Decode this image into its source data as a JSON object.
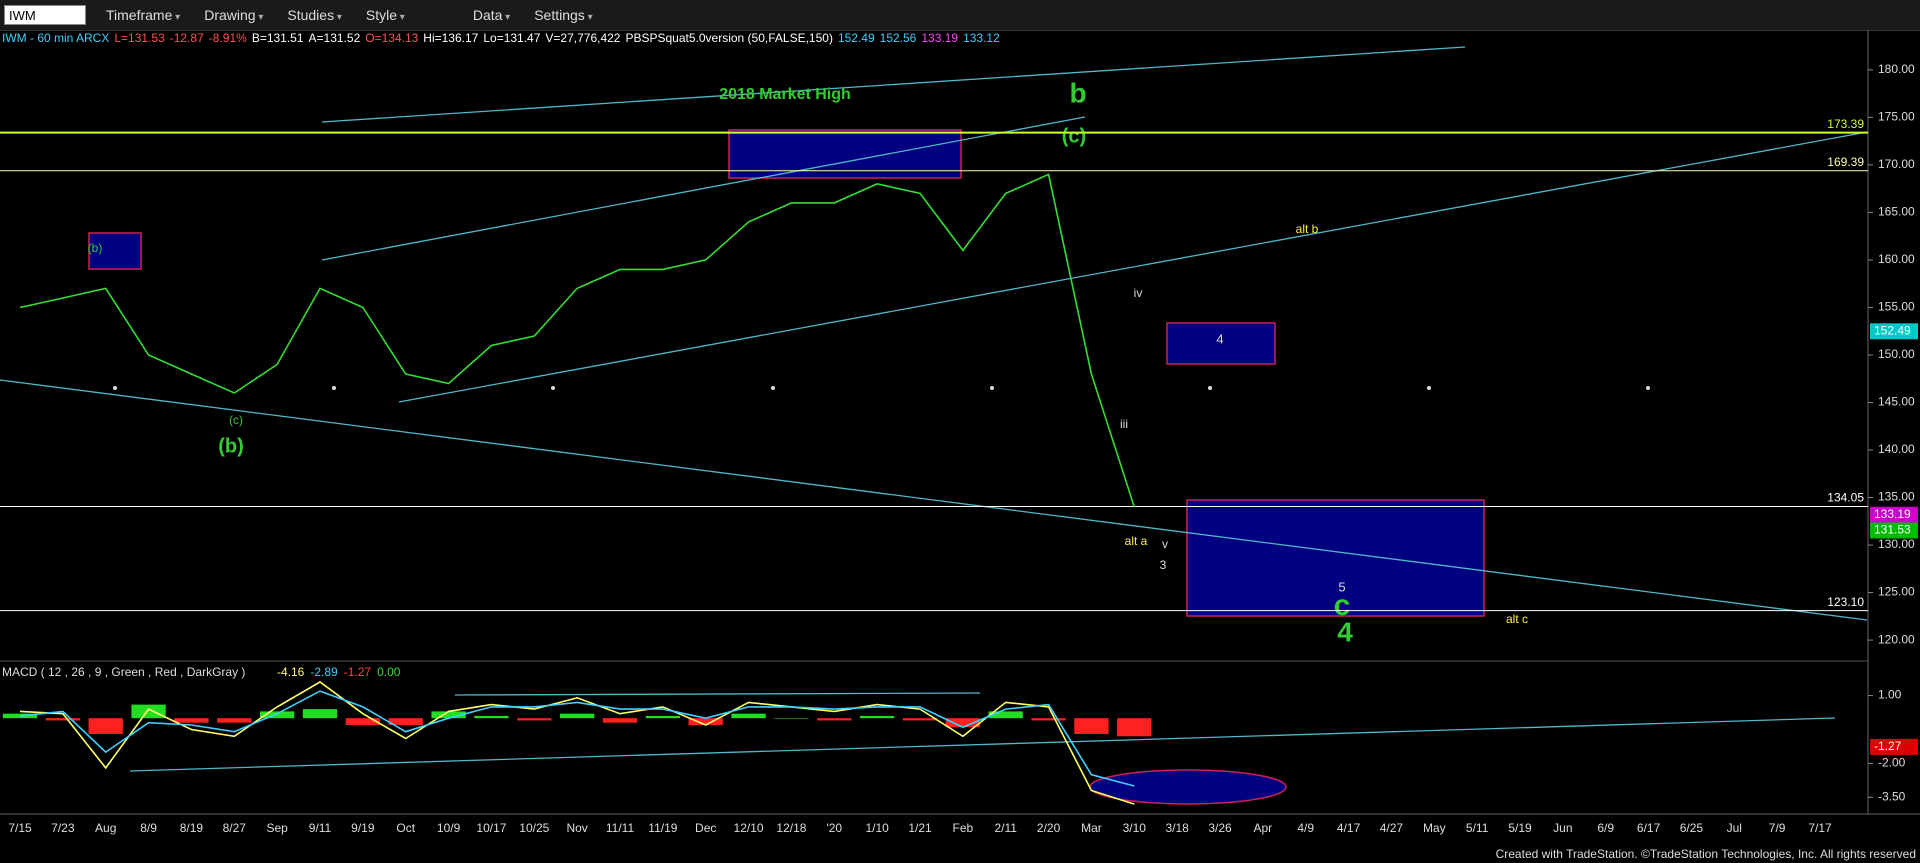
{
  "toolbar": {
    "symbol": "IWM",
    "buttons": [
      "Timeframe",
      "Drawing",
      "Studies",
      "Style",
      "Data",
      "Settings"
    ]
  },
  "info_line": [
    {
      "text": "IWM - 60 min ARCX",
      "color": "#3fd0ff"
    },
    {
      "text": "L=131.53",
      "color": "#ff5050"
    },
    {
      "text": "-12.87",
      "color": "#ff5050"
    },
    {
      "text": "-8.91%",
      "color": "#ff5050"
    },
    {
      "text": "B=131.51",
      "color": "#ffffff"
    },
    {
      "text": "A=131.52",
      "color": "#ffffff"
    },
    {
      "text": "O=134.13",
      "color": "#ff5050"
    },
    {
      "text": "Hi=136.17",
      "color": "#ffffff"
    },
    {
      "text": "Lo=131.47",
      "color": "#ffffff"
    },
    {
      "text": "V=27,776,422",
      "color": "#ffffff"
    },
    {
      "text": "PBSPSquat5.0version (50,FALSE,150)",
      "color": "#ffffff"
    },
    {
      "text": "152.49",
      "color": "#3fd0ff"
    },
    {
      "text": "152.56",
      "color": "#3fd0ff"
    },
    {
      "text": "133.19",
      "color": "#ff44ff"
    },
    {
      "text": "133.12",
      "color": "#3fd0ff"
    }
  ],
  "chart_data": [
    {
      "type": "line",
      "categories": [
        "7/15",
        "7/23",
        "Aug",
        "8/9",
        "8/19",
        "8/27",
        "Sep",
        "9/11",
        "9/19",
        "Oct",
        "10/9",
        "10/17",
        "10/25",
        "Nov",
        "11/11",
        "11/19",
        "Dec",
        "12/10",
        "12/18",
        "'20",
        "1/10",
        "1/21",
        "Feb",
        "2/11",
        "2/20",
        "Mar",
        "3/10",
        "3/18",
        "3/26",
        "Apr",
        "4/9",
        "4/17",
        "4/27",
        "May",
        "5/11",
        "5/19",
        "Jun",
        "6/9",
        "6/17",
        "6/25",
        "Jul",
        "7/9",
        "7/17"
      ],
      "series": [
        {
          "color": "#33dd33",
          "values": [
            155,
            156,
            157,
            150,
            148,
            146,
            149,
            157,
            155,
            148,
            147,
            151,
            152,
            157,
            159,
            159,
            160,
            164,
            166,
            166,
            168,
            167,
            161,
            167,
            169,
            148,
            134,
            null,
            null,
            null,
            null,
            null,
            null,
            null,
            null,
            null,
            null,
            null,
            null,
            null,
            null,
            null,
            null
          ]
        }
      ],
      "ylim": [
        117.8,
        182.3
      ],
      "yticks": [
        {
          "value": 120,
          "label": "120.00"
        },
        {
          "value": 125,
          "label": "125.00"
        },
        {
          "value": 130,
          "label": "130.00"
        },
        {
          "value": 135,
          "label": "135.00"
        },
        {
          "value": 140,
          "label": "140.00"
        },
        {
          "value": 145,
          "label": "145.00"
        },
        {
          "value": 150,
          "label": "150.00"
        },
        {
          "value": 155,
          "label": "155.00"
        },
        {
          "value": 160,
          "label": "160.00"
        },
        {
          "value": 165,
          "label": "165.00"
        },
        {
          "value": 170,
          "label": "170.00"
        },
        {
          "value": 175,
          "label": "175.00"
        },
        {
          "value": 180,
          "label": "180.00"
        }
      ],
      "levels": [
        173.39,
        169.39,
        134.05,
        {
          "value": 123.1,
          "label": "123.10"
        }
      ],
      "level_colors": [
        "#ccff33",
        "#ffffaa",
        "#ffffff",
        "#ffffff"
      ],
      "last_values": [
        152.49,
        133.19,
        131.53
      ],
      "last_value_colors": [
        "#00c8c8",
        "#cc00cc",
        "#00bb00"
      ],
      "annotations": [
        "2018 Market High",
        "b",
        "(c)",
        "(b)",
        "(c)",
        "(b)",
        "alt b",
        "iv",
        "iii",
        "4",
        "alt a",
        "v",
        "3",
        "5",
        "c",
        "4",
        "alt c"
      ]
    },
    {
      "type": "macd",
      "title": "MACD ( 12 , 26 , 9 , Green , Red , DarkGray )",
      "legend_values": [
        {
          "text": "-4.16",
          "color": "#ffff66"
        },
        {
          "text": "-2.89",
          "color": "#3fd0ff"
        },
        {
          "text": "-1.27",
          "color": "#ff4040"
        },
        {
          "text": "0.00",
          "color": "#33dd33"
        }
      ],
      "series": [
        {
          "color": "#ffff66",
          "values": [
            0.3,
            0.2,
            -2.2,
            0.4,
            -0.5,
            -0.8,
            0.5,
            1.6,
            0.2,
            -0.9,
            0.3,
            0.6,
            0.4,
            0.9,
            0.2,
            0.5,
            -0.3,
            0.7,
            0.5,
            0.3,
            0.6,
            0.4,
            -0.8,
            0.7,
            0.5,
            -3.2,
            -3.8,
            null,
            null,
            null,
            null,
            null,
            null,
            null,
            null,
            null,
            null,
            null,
            null,
            null,
            null,
            null,
            null
          ]
        },
        {
          "color": "#3fd0ff",
          "values": [
            0.1,
            0.3,
            -1.5,
            -0.2,
            -0.3,
            -0.6,
            0.2,
            1.2,
            0.5,
            -0.6,
            0.0,
            0.5,
            0.5,
            0.7,
            0.4,
            0.4,
            0.0,
            0.5,
            0.5,
            0.4,
            0.5,
            0.5,
            -0.4,
            0.4,
            0.6,
            -2.5,
            -3.0,
            null,
            null,
            null,
            null,
            null,
            null,
            null,
            null,
            null,
            null,
            null,
            null,
            null,
            null,
            null,
            null
          ]
        }
      ],
      "histogram": [
        0.2,
        -0.1,
        -0.7,
        0.6,
        -0.2,
        -0.2,
        0.3,
        0.4,
        -0.3,
        -0.3,
        0.3,
        0.1,
        -0.1,
        0.2,
        -0.2,
        0.1,
        -0.3,
        0.2,
        0,
        -0.1,
        0.1,
        -0.1,
        -0.4,
        0.3,
        -0.1,
        -0.7,
        -0.8,
        null,
        null,
        null,
        null,
        null,
        null,
        null,
        null,
        null,
        null,
        null,
        null,
        null,
        null,
        null,
        null
      ],
      "histogram_colors": [
        "#22dd22",
        "#ff2020"
      ],
      "ylim": [
        -4.24,
        2.53
      ],
      "yticks": [
        {
          "value": 1,
          "label": "1.00"
        },
        {
          "value": -2,
          "label": "-2.00"
        },
        {
          "value": -3.5,
          "label": "-3.50"
        }
      ],
      "last_values": [
        -1.27
      ],
      "last_value_colors": [
        "#dd0000"
      ]
    }
  ],
  "footer": "Created with TradeStation. ©TradeStation Technologies, Inc. All rights reserved"
}
